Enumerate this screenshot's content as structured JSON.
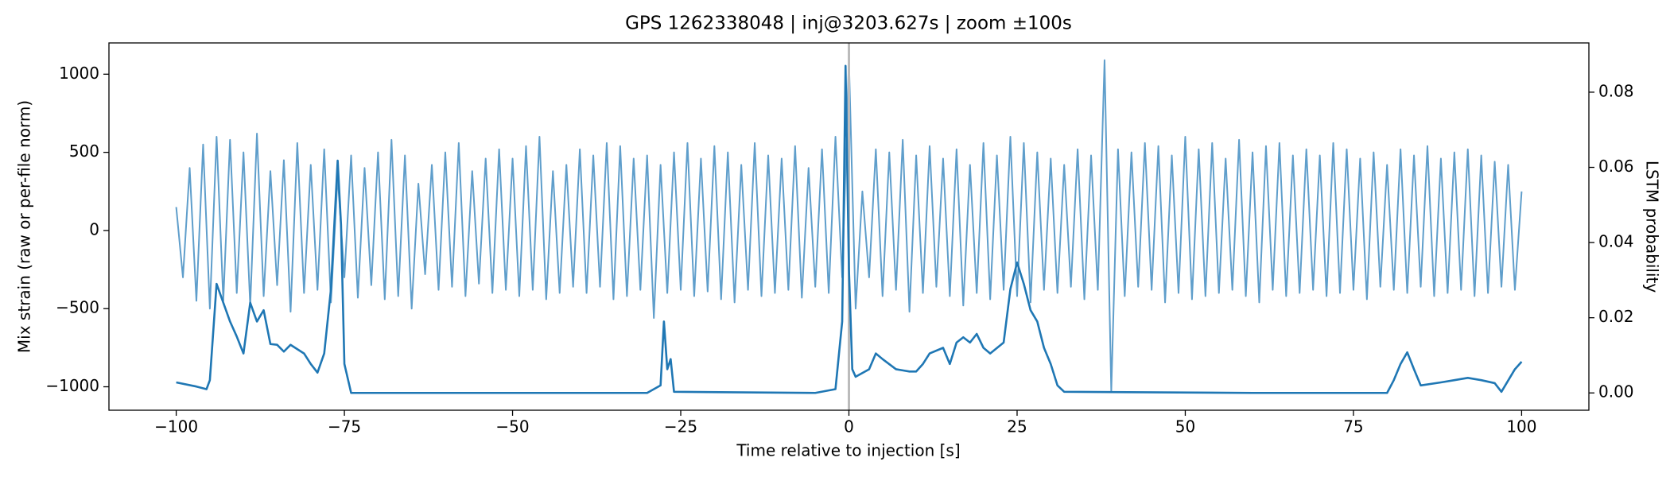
{
  "chart_data": {
    "type": "line",
    "title": "GPS 1262338048 | inj@3203.627s | zoom ±100s",
    "x_label": "Time relative to injection [s]",
    "y_label": "Mix strain (raw or per-file norm)",
    "y2_label": "LSTM probability",
    "xlim": [
      -110,
      110
    ],
    "xticks": [
      {
        "value": -100,
        "label": "−100"
      },
      {
        "value": -75,
        "label": "−75"
      },
      {
        "value": -50,
        "label": "−50"
      },
      {
        "value": -25,
        "label": "−25"
      },
      0,
      25,
      50,
      75,
      100
    ],
    "ylim": [
      -1150,
      1200
    ],
    "yticks": [
      {
        "value": -1000,
        "label": "−1000"
      },
      {
        "value": -500,
        "label": "−500"
      },
      0,
      500,
      1000
    ],
    "y2lim": [
      -0.0046,
      0.0931
    ],
    "y2ticks": [
      {
        "value": 0,
        "label": "0.00"
      },
      {
        "value": 0.02,
        "label": "0.02"
      },
      {
        "value": 0.04,
        "label": "0.04"
      },
      {
        "value": 0.06,
        "label": "0.06"
      },
      {
        "value": 0.08,
        "label": "0.08"
      }
    ],
    "vline": {
      "x": 0,
      "color": "#bbbbbb"
    },
    "series": [
      {
        "color": "#5f9ecb",
        "x": [
          -100,
          -99,
          -98,
          -97,
          -96,
          -95,
          -94,
          -93,
          -92,
          -91,
          -90,
          -89,
          -88,
          -87,
          -86,
          -85,
          -84,
          -83,
          -82,
          -81,
          -80,
          -79,
          -78,
          -77,
          -76,
          -75,
          -74,
          -73,
          -72,
          -71,
          -70,
          -69,
          -68,
          -67,
          -66,
          -65,
          -64,
          -63,
          -62,
          -61,
          -60,
          -59,
          -58,
          -57,
          -56,
          -55,
          -54,
          -53,
          -52,
          -51,
          -50,
          -49,
          -48,
          -47,
          -46,
          -45,
          -44,
          -43,
          -42,
          -41,
          -40,
          -39,
          -38,
          -37,
          -36,
          -35,
          -34,
          -33,
          -32,
          -31,
          -30,
          -29,
          -28,
          -27,
          -26,
          -25,
          -24,
          -23,
          -22,
          -21,
          -20,
          -19,
          -18,
          -17,
          -16,
          -15,
          -14,
          -13,
          -12,
          -11,
          -10,
          -9,
          -8,
          -7,
          -6,
          -5,
          -4,
          -3,
          -2,
          -1,
          0,
          1,
          2,
          3,
          4,
          5,
          6,
          7,
          8,
          9,
          10,
          11,
          12,
          13,
          14,
          15,
          16,
          17,
          18,
          19,
          20,
          21,
          22,
          23,
          24,
          25,
          26,
          27,
          28,
          29,
          30,
          31,
          32,
          33,
          34,
          35,
          36,
          37,
          38,
          39,
          40,
          41,
          42,
          43,
          44,
          45,
          46,
          47,
          48,
          49,
          50,
          51,
          52,
          53,
          54,
          55,
          56,
          57,
          58,
          59,
          60,
          61,
          62,
          63,
          64,
          65,
          66,
          67,
          68,
          69,
          70,
          71,
          72,
          73,
          74,
          75,
          76,
          77,
          78,
          79,
          80,
          81,
          82,
          83,
          84,
          85,
          86,
          87,
          88,
          89,
          90,
          91,
          92,
          93,
          94,
          95,
          96,
          97,
          98,
          99,
          100
        ],
        "values": [
          150,
          -300,
          400,
          -450,
          550,
          -500,
          600,
          -450,
          580,
          -400,
          500,
          -480,
          620,
          -420,
          380,
          -350,
          450,
          -520,
          560,
          -400,
          420,
          -380,
          520,
          -460,
          350,
          -300,
          480,
          -430,
          400,
          -350,
          500,
          -440,
          580,
          -420,
          480,
          -500,
          300,
          -280,
          420,
          -380,
          500,
          -360,
          560,
          -420,
          380,
          -340,
          460,
          -400,
          520,
          -380,
          460,
          -420,
          540,
          -380,
          600,
          -440,
          380,
          -400,
          420,
          -360,
          520,
          -400,
          480,
          -360,
          560,
          -440,
          540,
          -420,
          460,
          -380,
          480,
          -560,
          420,
          -400,
          500,
          -380,
          560,
          -420,
          460,
          -390,
          540,
          -440,
          500,
          -460,
          420,
          -380,
          560,
          -420,
          480,
          -400,
          460,
          -380,
          540,
          -430,
          400,
          -360,
          520,
          -400,
          600,
          -300,
          1090,
          -500,
          250,
          -300,
          520,
          -420,
          500,
          -380,
          580,
          -520,
          480,
          -400,
          540,
          -360,
          460,
          -420,
          520,
          -480,
          420,
          -400,
          560,
          -440,
          480,
          -380,
          600,
          -420,
          560,
          -460,
          500,
          -380,
          460,
          -400,
          420,
          -360,
          520,
          -440,
          480,
          -380,
          1090,
          -1030,
          520,
          -420,
          500,
          -360,
          560,
          -380,
          540,
          -460,
          480,
          -400,
          600,
          -440,
          520,
          -420,
          560,
          -400,
          460,
          -380,
          580,
          -420,
          500,
          -460,
          540,
          -380,
          560,
          -420,
          480,
          -400,
          520,
          -380,
          480,
          -420,
          560,
          -400,
          520,
          -380,
          460,
          -440,
          500,
          -360,
          420,
          -380,
          520,
          -400,
          480,
          -360,
          540,
          -420,
          460,
          -400,
          500,
          -380,
          520,
          -420,
          480,
          -400,
          440,
          -360,
          420,
          -380,
          250
        ]
      },
      {
        "color": "#1f77b4",
        "axis": "y2",
        "x": [
          -100,
          -97,
          -95.5,
          -95,
          -94,
          -92,
          -91,
          -90,
          -89,
          -88,
          -87,
          -86,
          -85,
          -84,
          -83,
          -81,
          -80,
          -79,
          -78,
          -77,
          -76,
          -75.5,
          -75,
          -74,
          -50,
          -30,
          -28,
          -27.5,
          -27,
          -26.5,
          -26,
          -5,
          -2,
          -1,
          -0.5,
          0,
          0.5,
          1,
          3,
          4,
          5,
          7,
          8,
          9,
          10,
          11,
          12,
          14,
          15,
          16,
          17,
          18,
          19,
          20,
          21,
          23,
          24,
          25,
          26,
          27,
          28,
          29,
          30,
          31,
          32,
          60,
          80,
          81,
          82,
          83,
          84,
          85,
          88,
          90,
          92,
          94,
          96,
          97,
          99,
          100
        ],
        "values": [
          0.0028,
          0.0017,
          0.001,
          0.0034,
          0.029,
          0.019,
          0.015,
          0.0105,
          0.024,
          0.019,
          0.022,
          0.013,
          0.0128,
          0.011,
          0.0128,
          0.0105,
          0.0077,
          0.0054,
          0.0105,
          0.0276,
          0.0618,
          0.0447,
          0.0077,
          0,
          0,
          0,
          0.002,
          0.019,
          0.0063,
          0.009,
          0.0003,
          0,
          0.001,
          0.019,
          0.087,
          0.033,
          0.0063,
          0.0043,
          0.0063,
          0.0105,
          0.009,
          0.0063,
          0.006,
          0.0057,
          0.0057,
          0.0077,
          0.0105,
          0.012,
          0.0077,
          0.0134,
          0.0148,
          0.0134,
          0.0157,
          0.012,
          0.0105,
          0.0134,
          0.0276,
          0.0347,
          0.029,
          0.022,
          0.019,
          0.012,
          0.0077,
          0.002,
          0.0003,
          0,
          0,
          0.0034,
          0.0077,
          0.0108,
          0.0063,
          0.002,
          0.0028,
          0.0034,
          0.004,
          0.0034,
          0.0026,
          0.0003,
          0.0063,
          0.0083
        ]
      }
    ]
  }
}
